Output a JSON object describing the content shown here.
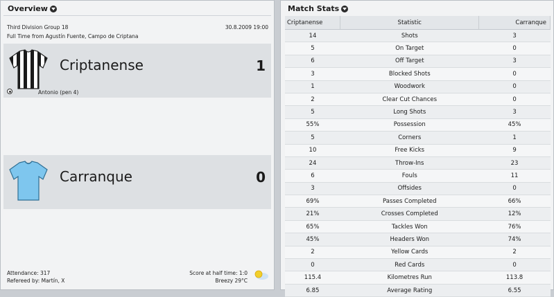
{
  "overview": {
    "title": "Overview",
    "competition": "Third Division Group 18",
    "date": "30.8.2009 19:00",
    "venue_line": "Full Time from Agustín Fuente, Campo de Criptana",
    "home": {
      "name": "Criptanense",
      "score": "1",
      "kit_colors": [
        "#1a1a1a",
        "#ffffff"
      ]
    },
    "away": {
      "name": "Carranque",
      "score": "0",
      "kit_colors": [
        "#7ec6ee"
      ]
    },
    "scorer": "Antonio (pen 4)",
    "attendance": "Attendance: 317",
    "referee": "Refereed by: Martín, X",
    "half_time": "Score at half time: 1:0",
    "weather": "Breezy 29°C",
    "weather_icon": "sun-icon"
  },
  "stats": {
    "title": "Match Stats",
    "columns": {
      "home": "Criptanense",
      "stat": "Statistic",
      "away": "Carranque"
    },
    "rows": [
      {
        "home": "14",
        "stat": "Shots",
        "away": "3"
      },
      {
        "home": "5",
        "stat": "On Target",
        "away": "0"
      },
      {
        "home": "6",
        "stat": "Off Target",
        "away": "3"
      },
      {
        "home": "3",
        "stat": "Blocked Shots",
        "away": "0"
      },
      {
        "home": "1",
        "stat": "Woodwork",
        "away": "0"
      },
      {
        "home": "2",
        "stat": "Clear Cut Chances",
        "away": "0"
      },
      {
        "home": "5",
        "stat": "Long Shots",
        "away": "3"
      },
      {
        "home": "55%",
        "stat": "Possession",
        "away": "45%"
      },
      {
        "home": "5",
        "stat": "Corners",
        "away": "1"
      },
      {
        "home": "10",
        "stat": "Free Kicks",
        "away": "9"
      },
      {
        "home": "24",
        "stat": "Throw-Ins",
        "away": "23"
      },
      {
        "home": "6",
        "stat": "Fouls",
        "away": "11"
      },
      {
        "home": "3",
        "stat": "Offsides",
        "away": "0"
      },
      {
        "home": "69%",
        "stat": "Passes Completed",
        "away": "66%"
      },
      {
        "home": "21%",
        "stat": "Crosses Completed",
        "away": "12%"
      },
      {
        "home": "65%",
        "stat": "Tackles Won",
        "away": "76%"
      },
      {
        "home": "45%",
        "stat": "Headers Won",
        "away": "74%"
      },
      {
        "home": "2",
        "stat": "Yellow Cards",
        "away": "2"
      },
      {
        "home": "0",
        "stat": "Red Cards",
        "away": "0"
      },
      {
        "home": "115.4",
        "stat": "Kilometres Run",
        "away": "113.8"
      },
      {
        "home": "6.85",
        "stat": "Average Rating",
        "away": "6.55"
      }
    ]
  }
}
